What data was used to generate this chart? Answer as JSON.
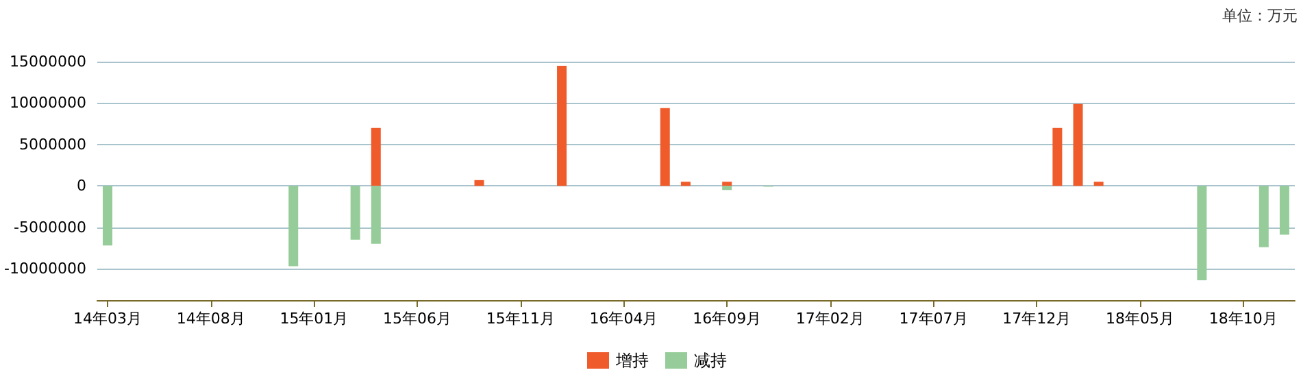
{
  "chart_data": {
    "type": "bar",
    "annotations": [
      "单位：万元"
    ],
    "categories": [
      "14年03月",
      null,
      null,
      null,
      null,
      "14年08月",
      null,
      null,
      null,
      null,
      "15年01月",
      null,
      null,
      null,
      null,
      "15年06月",
      null,
      null,
      null,
      null,
      "15年11月",
      null,
      null,
      null,
      null,
      "16年04月",
      null,
      null,
      null,
      null,
      "16年09月",
      null,
      null,
      null,
      null,
      "17年02月",
      null,
      null,
      null,
      null,
      "17年07月",
      null,
      null,
      null,
      null,
      "17年12月",
      null,
      null,
      null,
      null,
      "18年05月",
      null,
      null,
      null,
      null,
      "18年10月",
      null,
      null
    ],
    "series": [
      {
        "name": "增持",
        "color": "#f05b2b",
        "values": [
          null,
          null,
          null,
          null,
          null,
          null,
          null,
          null,
          null,
          null,
          null,
          null,
          null,
          7000000,
          null,
          null,
          null,
          null,
          700000,
          null,
          null,
          null,
          14500000,
          null,
          null,
          null,
          null,
          9400000,
          500000,
          null,
          500000,
          null,
          null,
          null,
          null,
          null,
          null,
          null,
          null,
          null,
          null,
          null,
          null,
          null,
          null,
          null,
          7000000,
          9900000,
          500000,
          null,
          null,
          null,
          null,
          null,
          null,
          null,
          null,
          null
        ]
      },
      {
        "name": "减持",
        "color": "#96cc9a",
        "values": [
          -7200000,
          null,
          null,
          null,
          null,
          null,
          null,
          null,
          null,
          -9700000,
          null,
          null,
          -6500000,
          -7000000,
          null,
          null,
          null,
          null,
          null,
          null,
          null,
          null,
          null,
          null,
          null,
          null,
          null,
          null,
          null,
          null,
          -500000,
          null,
          -100000,
          null,
          null,
          null,
          null,
          null,
          null,
          null,
          null,
          null,
          null,
          null,
          null,
          null,
          null,
          null,
          null,
          null,
          null,
          null,
          null,
          -11400000,
          null,
          null,
          -7400000,
          -5900000
        ]
      }
    ],
    "ylim": [
      -13800000,
      15000000
    ],
    "yticks": [
      -10000000,
      -5000000,
      0,
      5000000,
      10000000,
      15000000
    ],
    "grid": "y",
    "legend": "bottom"
  }
}
